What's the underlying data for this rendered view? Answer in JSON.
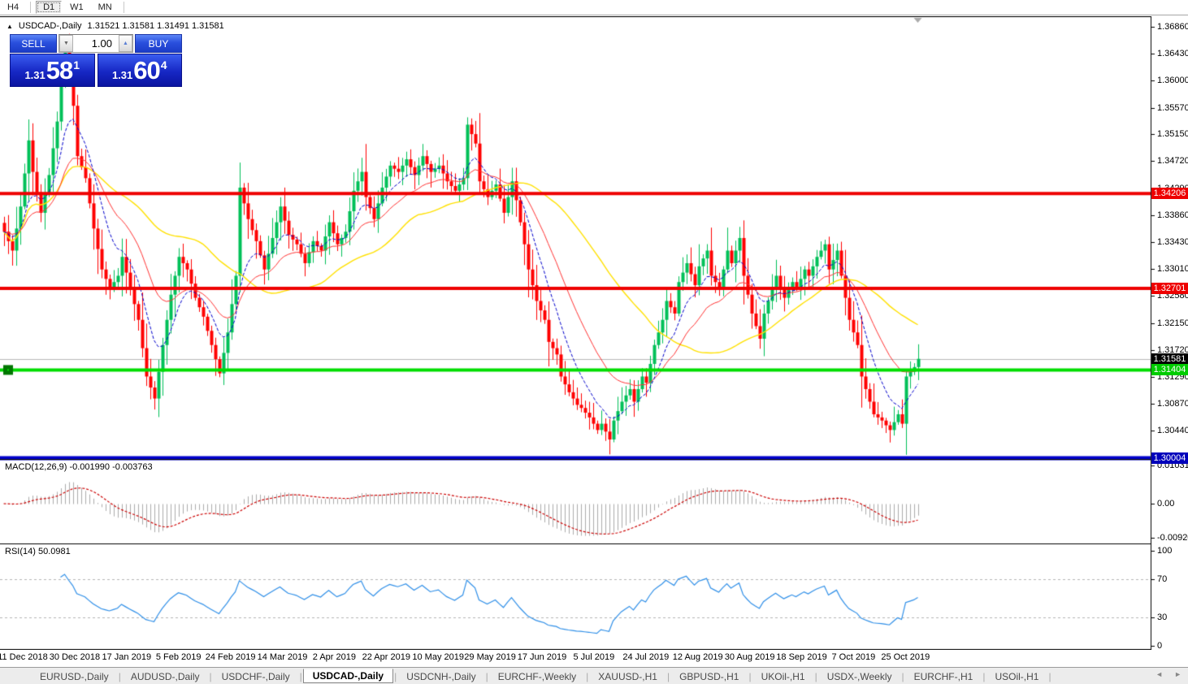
{
  "toolbar": {
    "timeframes": [
      "H4",
      "D1",
      "W1",
      "MN"
    ],
    "active": "D1"
  },
  "chart_header": {
    "symbol": "USDCAD-,Daily",
    "quotes": "1.31521 1.31581 1.31491 1.31581"
  },
  "trade_panel": {
    "sell_label": "SELL",
    "buy_label": "BUY",
    "volume": "1.00",
    "spinner_down": "▼",
    "spinner_up": "▲",
    "sell_price": {
      "small": "1.31",
      "big": "58",
      "sup": "1"
    },
    "buy_price": {
      "small": "1.31",
      "big": "60",
      "sup": "4"
    }
  },
  "price_axis": {
    "ticks": [
      "1.36860",
      "1.36430",
      "1.36000",
      "1.35570",
      "1.35150",
      "1.34720",
      "1.34290",
      "1.33860",
      "1.33430",
      "1.33010",
      "1.32580",
      "1.32150",
      "1.31720",
      "1.31290",
      "1.30870",
      "1.30440"
    ]
  },
  "line_labels": [
    {
      "text": "1.34206",
      "bg": "#ee0000",
      "fg": "#ffffff",
      "value": 1.34206
    },
    {
      "text": "1.32701",
      "bg": "#ee0000",
      "fg": "#ffffff",
      "value": 1.32701
    },
    {
      "text": "1.31581",
      "bg": "#000000",
      "fg": "#ffffff",
      "value": 1.31581
    },
    {
      "text": "1.31404",
      "bg": "#00cc00",
      "fg": "#ffffff",
      "value": 1.31404
    },
    {
      "text": "1.30004",
      "bg": "#0000bb",
      "fg": "#ffffff",
      "value": 1.30004
    }
  ],
  "macd_panel": {
    "label": "MACD(12,26,9) -0.001990 -0.003763",
    "ticks": [
      "0.010311",
      "0.00",
      "-0.009203"
    ]
  },
  "rsi_panel": {
    "label": "RSI(14) 50.0981",
    "ticks": [
      "100",
      "70",
      "30",
      "0"
    ]
  },
  "date_axis": [
    "11 Dec 2018",
    "30 Dec 2018",
    "17 Jan 2019",
    "5 Feb 2019",
    "24 Feb 2019",
    "14 Mar 2019",
    "2 Apr 2019",
    "22 Apr 2019",
    "10 May 2019",
    "29 May 2019",
    "17 Jun 2019",
    "5 Jul 2019",
    "24 Jul 2019",
    "12 Aug 2019",
    "30 Aug 2019",
    "18 Sep 2019",
    "7 Oct 2019",
    "25 Oct 2019"
  ],
  "tabs": {
    "items": [
      "EURUSD-,Daily",
      "AUDUSD-,Daily",
      "USDCHF-,Daily",
      "USDCAD-,Daily",
      "USDCNH-,Daily",
      "EURCHF-,Weekly",
      "XAUUSD-,H1",
      "GBPUSD-,H1",
      "UKOil-,H1",
      "USDX-,Weekly",
      "EURCHF-,H1",
      "USOil-,H1"
    ],
    "active": "USDCAD-,Daily"
  },
  "scrollbar": {
    "left_arrow": "◄",
    "right_arrow": "►"
  },
  "chart_data": {
    "type": "candlestick",
    "symbol": "USDCAD",
    "timeframe": "Daily",
    "price_top": 1.37022,
    "price_bottom": 1.2999,
    "levels": {
      "resistance1": 1.34206,
      "resistance2": 1.32701,
      "support_green": 1.31404,
      "support_blue": 1.30004,
      "current_price": 1.31581
    },
    "close_anchors": [
      [
        0,
        1.336
      ],
      [
        2,
        1.333
      ],
      [
        4,
        1.34
      ],
      [
        6,
        1.3505
      ],
      [
        7,
        1.3455
      ],
      [
        9,
        1.339
      ],
      [
        11,
        1.345
      ],
      [
        13,
        1.3535
      ],
      [
        15,
        1.365
      ],
      [
        17,
        1.356
      ],
      [
        18,
        1.348
      ],
      [
        20,
        1.3445
      ],
      [
        22,
        1.3365
      ],
      [
        24,
        1.33
      ],
      [
        26,
        1.327
      ],
      [
        28,
        1.329
      ],
      [
        29,
        1.332
      ],
      [
        31,
        1.327
      ],
      [
        33,
        1.322
      ],
      [
        35,
        1.313
      ],
      [
        37,
        1.3095
      ],
      [
        39,
        1.318
      ],
      [
        41,
        1.326
      ],
      [
        43,
        1.332
      ],
      [
        45,
        1.33
      ],
      [
        47,
        1.3255
      ],
      [
        49,
        1.3225
      ],
      [
        51,
        1.318
      ],
      [
        53,
        1.3135
      ],
      [
        55,
        1.32
      ],
      [
        57,
        1.329
      ],
      [
        58,
        1.343
      ],
      [
        60,
        1.338
      ],
      [
        62,
        1.3345
      ],
      [
        64,
        1.33
      ],
      [
        66,
        1.335
      ],
      [
        68,
        1.34
      ],
      [
        70,
        1.3355
      ],
      [
        72,
        1.334
      ],
      [
        74,
        1.331
      ],
      [
        76,
        1.3345
      ],
      [
        78,
        1.333
      ],
      [
        80,
        1.3375
      ],
      [
        82,
        1.334
      ],
      [
        84,
        1.336
      ],
      [
        86,
        1.3425
      ],
      [
        88,
        1.3455
      ],
      [
        89,
        1.3415
      ],
      [
        91,
        1.338
      ],
      [
        93,
        1.343
      ],
      [
        95,
        1.3465
      ],
      [
        97,
        1.3455
      ],
      [
        99,
        1.3475
      ],
      [
        101,
        1.345
      ],
      [
        103,
        1.348
      ],
      [
        105,
        1.3455
      ],
      [
        107,
        1.3465
      ],
      [
        109,
        1.344
      ],
      [
        111,
        1.3425
      ],
      [
        113,
        1.3445
      ],
      [
        114,
        1.353
      ],
      [
        116,
        1.35
      ],
      [
        117,
        1.344
      ],
      [
        119,
        1.3415
      ],
      [
        121,
        1.3435
      ],
      [
        123,
        1.339
      ],
      [
        125,
        1.344
      ],
      [
        126,
        1.341
      ],
      [
        128,
        1.334
      ],
      [
        129,
        1.33
      ],
      [
        131,
        1.325
      ],
      [
        133,
        1.322
      ],
      [
        134,
        1.3185
      ],
      [
        136,
        1.3165
      ],
      [
        137,
        1.313
      ],
      [
        139,
        1.3105
      ],
      [
        141,
        1.3085
      ],
      [
        142,
        1.308
      ],
      [
        144,
        1.3065
      ],
      [
        146,
        1.3045
      ],
      [
        147,
        1.3055
      ],
      [
        149,
        1.303
      ],
      [
        150,
        1.306
      ],
      [
        152,
        1.309
      ],
      [
        154,
        1.311
      ],
      [
        155,
        1.309
      ],
      [
        157,
        1.313
      ],
      [
        158,
        1.312
      ],
      [
        160,
        1.318
      ],
      [
        162,
        1.322
      ],
      [
        163,
        1.325
      ],
      [
        165,
        1.323
      ],
      [
        166,
        1.328
      ],
      [
        168,
        1.331
      ],
      [
        170,
        1.3275
      ],
      [
        171,
        1.3305
      ],
      [
        173,
        1.333
      ],
      [
        174,
        1.329
      ],
      [
        176,
        1.327
      ],
      [
        178,
        1.333
      ],
      [
        179,
        1.331
      ],
      [
        181,
        1.335
      ],
      [
        182,
        1.329
      ],
      [
        184,
        1.323
      ],
      [
        186,
        1.319
      ],
      [
        187,
        1.323
      ],
      [
        189,
        1.327
      ],
      [
        190,
        1.329
      ],
      [
        192,
        1.3255
      ],
      [
        194,
        1.328
      ],
      [
        195,
        1.327
      ],
      [
        197,
        1.33
      ],
      [
        198,
        1.329
      ],
      [
        200,
        1.332
      ],
      [
        202,
        1.334
      ],
      [
        203,
        1.33
      ],
      [
        205,
        1.333
      ],
      [
        206,
        1.329
      ],
      [
        208,
        1.322
      ],
      [
        210,
        1.318
      ],
      [
        211,
        1.313
      ],
      [
        213,
        1.309
      ],
      [
        214,
        1.307
      ],
      [
        216,
        1.306
      ],
      [
        218,
        1.3045
      ],
      [
        220,
        1.307
      ],
      [
        221,
        1.3055
      ],
      [
        222,
        1.313
      ],
      [
        224,
        1.3145
      ],
      [
        225,
        1.31581
      ]
    ],
    "colors": {
      "bull": "#00c058",
      "bear": "#ff0000",
      "ma_fast": "#0000cc",
      "ma_mid": "#ff3333",
      "ma_slow": "#ffe100",
      "macd_hist": "#ababab",
      "macd_signal": "#cc0000",
      "rsi": "#2f8fe8",
      "level_red": "#ee0000",
      "level_green": "#00dd00",
      "level_blue": "#0000cc",
      "current_line": "#b8b8b8",
      "rsi_level_dash": "#b5b5b5"
    },
    "indicators": {
      "macd": {
        "fast": 12,
        "slow": 26,
        "signal": 9,
        "values": [
          -0.00199,
          -0.003763
        ],
        "scale_max": 0.010311,
        "scale_min": -0.009203
      },
      "rsi": {
        "period": 14,
        "value": 50.0981,
        "levels": [
          70,
          30
        ],
        "scale": [
          0,
          100
        ]
      }
    }
  }
}
